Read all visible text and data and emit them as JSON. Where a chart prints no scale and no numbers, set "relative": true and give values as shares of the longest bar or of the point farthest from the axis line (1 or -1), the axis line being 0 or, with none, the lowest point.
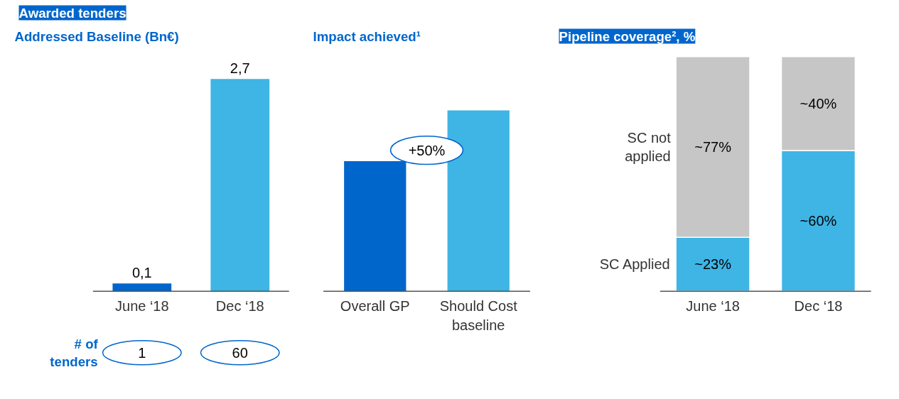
{
  "chart_data": [
    {
      "type": "bar",
      "title": "Awarded tenders",
      "subtitle": "Addressed Baseline (Bn€)",
      "categories": [
        "June ‘18",
        "Dec ‘18"
      ],
      "values": [
        0.1,
        2.7
      ],
      "colors": [
        "#0066cc",
        "#3eb5e5"
      ],
      "value_labels": [
        "0,1",
        "2,7"
      ],
      "annotations": [
        "# of tenders",
        "1",
        "60"
      ]
    },
    {
      "type": "bar",
      "title": "Impact achieved¹",
      "relative": true,
      "categories": [
        "Overall GP",
        "Should Cost baseline"
      ],
      "values": [
        0.72,
        1
      ],
      "colors": [
        "#0066cc",
        "#3eb5e5"
      ],
      "annotations": [
        "+50%"
      ]
    },
    {
      "type": "bar",
      "title": "Pipeline coverage², %",
      "stacked": true,
      "categories": [
        "June ‘18",
        "Dec ‘18"
      ],
      "series": [
        {
          "name": "SC Applied",
          "color": "#3eb5e5",
          "values": [
            23,
            60
          ],
          "value_labels": [
            "~23%",
            "~60%"
          ]
        },
        {
          "name": "SC not applied",
          "color": "#c6c6c6",
          "values": [
            77,
            40
          ],
          "value_labels": [
            "~77%",
            "~40%"
          ]
        }
      ]
    }
  ]
}
